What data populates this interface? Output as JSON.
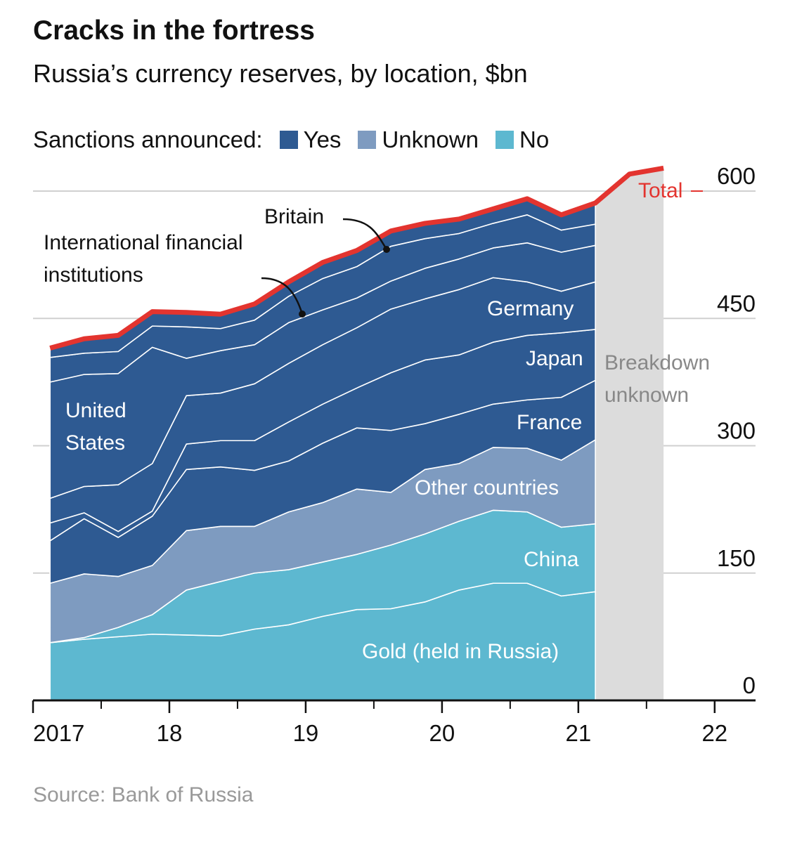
{
  "chart_data": {
    "type": "stacked_area",
    "title": "Cracks in the fortress",
    "subtitle": "Russia’s currency reserves, by location, $bn",
    "legend_title": "Sanctions announced:",
    "legend": [
      {
        "name": "Yes",
        "color": "#2e5a92"
      },
      {
        "name": "Unknown",
        "color": "#7e9bc0"
      },
      {
        "name": "No",
        "color": "#5db8d0"
      }
    ],
    "x": [
      2017.125,
      2017.375,
      2017.625,
      2017.875,
      2018.125,
      2018.375,
      2018.625,
      2018.875,
      2019.125,
      2019.375,
      2019.625,
      2019.875,
      2020.125,
      2020.375,
      2020.625,
      2020.875,
      2021.125,
      2021.375,
      2021.625
    ],
    "xlim": [
      2017,
      2022.3
    ],
    "xticks": [
      {
        "value": 2017,
        "label": "2017"
      },
      {
        "value": 2018,
        "label": "18"
      },
      {
        "value": 2019,
        "label": "19"
      },
      {
        "value": 2020,
        "label": "20"
      },
      {
        "value": 2021,
        "label": "21"
      },
      {
        "value": 2022,
        "label": "22"
      }
    ],
    "xticks_minor": [
      2017.5,
      2018.5,
      2019.5,
      2020.5,
      2021.5
    ],
    "ylim": [
      0,
      600
    ],
    "yticks": [
      0,
      150,
      300,
      450,
      600
    ],
    "grid": true,
    "series": [
      {
        "name": "Gold (held in Russia)",
        "color": "#5db8d0",
        "values": [
          68,
          72,
          75,
          78,
          77,
          76,
          84,
          89,
          99,
          107,
          108,
          116,
          130,
          138,
          138,
          123,
          128,
          null,
          null
        ]
      },
      {
        "name": "China",
        "color": "#5db8d0",
        "values": [
          0,
          2,
          11,
          23,
          53,
          64,
          66,
          65,
          64,
          65,
          75,
          80,
          81,
          86,
          84,
          81,
          80,
          null,
          null
        ]
      },
      {
        "name": "Other countries",
        "color": "#7e9bc0",
        "values": [
          70,
          75,
          60,
          58,
          70,
          65,
          55,
          68,
          70,
          77,
          62,
          76,
          68,
          74,
          75,
          79,
          99,
          null,
          null
        ]
      },
      {
        "name": "France",
        "color": "#2e5a92",
        "values": [
          50,
          65,
          46,
          58,
          72,
          70,
          66,
          60,
          70,
          72,
          73,
          54,
          58,
          51,
          57,
          74,
          70,
          null,
          null
        ]
      },
      {
        "name": "Japan",
        "color": "#2e5a92",
        "values": [
          21,
          7,
          7,
          6,
          30,
          31,
          35,
          46,
          46,
          47,
          68,
          75,
          70,
          73,
          76,
          76,
          60,
          null,
          null
        ]
      },
      {
        "name": "Germany",
        "color": "#2e5a92",
        "values": [
          29,
          31,
          55,
          56,
          57,
          56,
          67,
          69,
          70,
          71,
          75,
          72,
          77,
          76,
          63,
          49,
          56,
          null,
          null
        ]
      },
      {
        "name": "United States",
        "color": "#2e5a92",
        "values": [
          137,
          132,
          131,
          137,
          44,
          50,
          46,
          48,
          41,
          35,
          33,
          36,
          36,
          35,
          46,
          46,
          43,
          null,
          null
        ]
      },
      {
        "name": "International financial institutions",
        "color": "#2e5a92",
        "values": [
          29,
          25,
          26,
          25,
          37,
          26,
          29,
          31,
          37,
          37,
          41,
          35,
          30,
          29,
          33,
          26,
          25,
          null,
          null
        ]
      },
      {
        "name": "Britain",
        "color": "#2e5a92",
        "values": [
          11,
          17,
          19,
          17,
          17,
          17,
          19,
          17,
          19,
          19,
          18,
          18,
          17,
          17,
          19,
          18,
          25,
          null,
          null
        ]
      }
    ],
    "total": {
      "name": "Total",
      "color": "#e3342f",
      "values": [
        415,
        426,
        430,
        458,
        457,
        455,
        467,
        493,
        516,
        530,
        553,
        562,
        567,
        579,
        591,
        572,
        586,
        620,
        627
      ]
    },
    "annotation": "Breakdown unknown",
    "unknown_color": "#dcdcdc",
    "source": "Source: Bank of Russia"
  }
}
